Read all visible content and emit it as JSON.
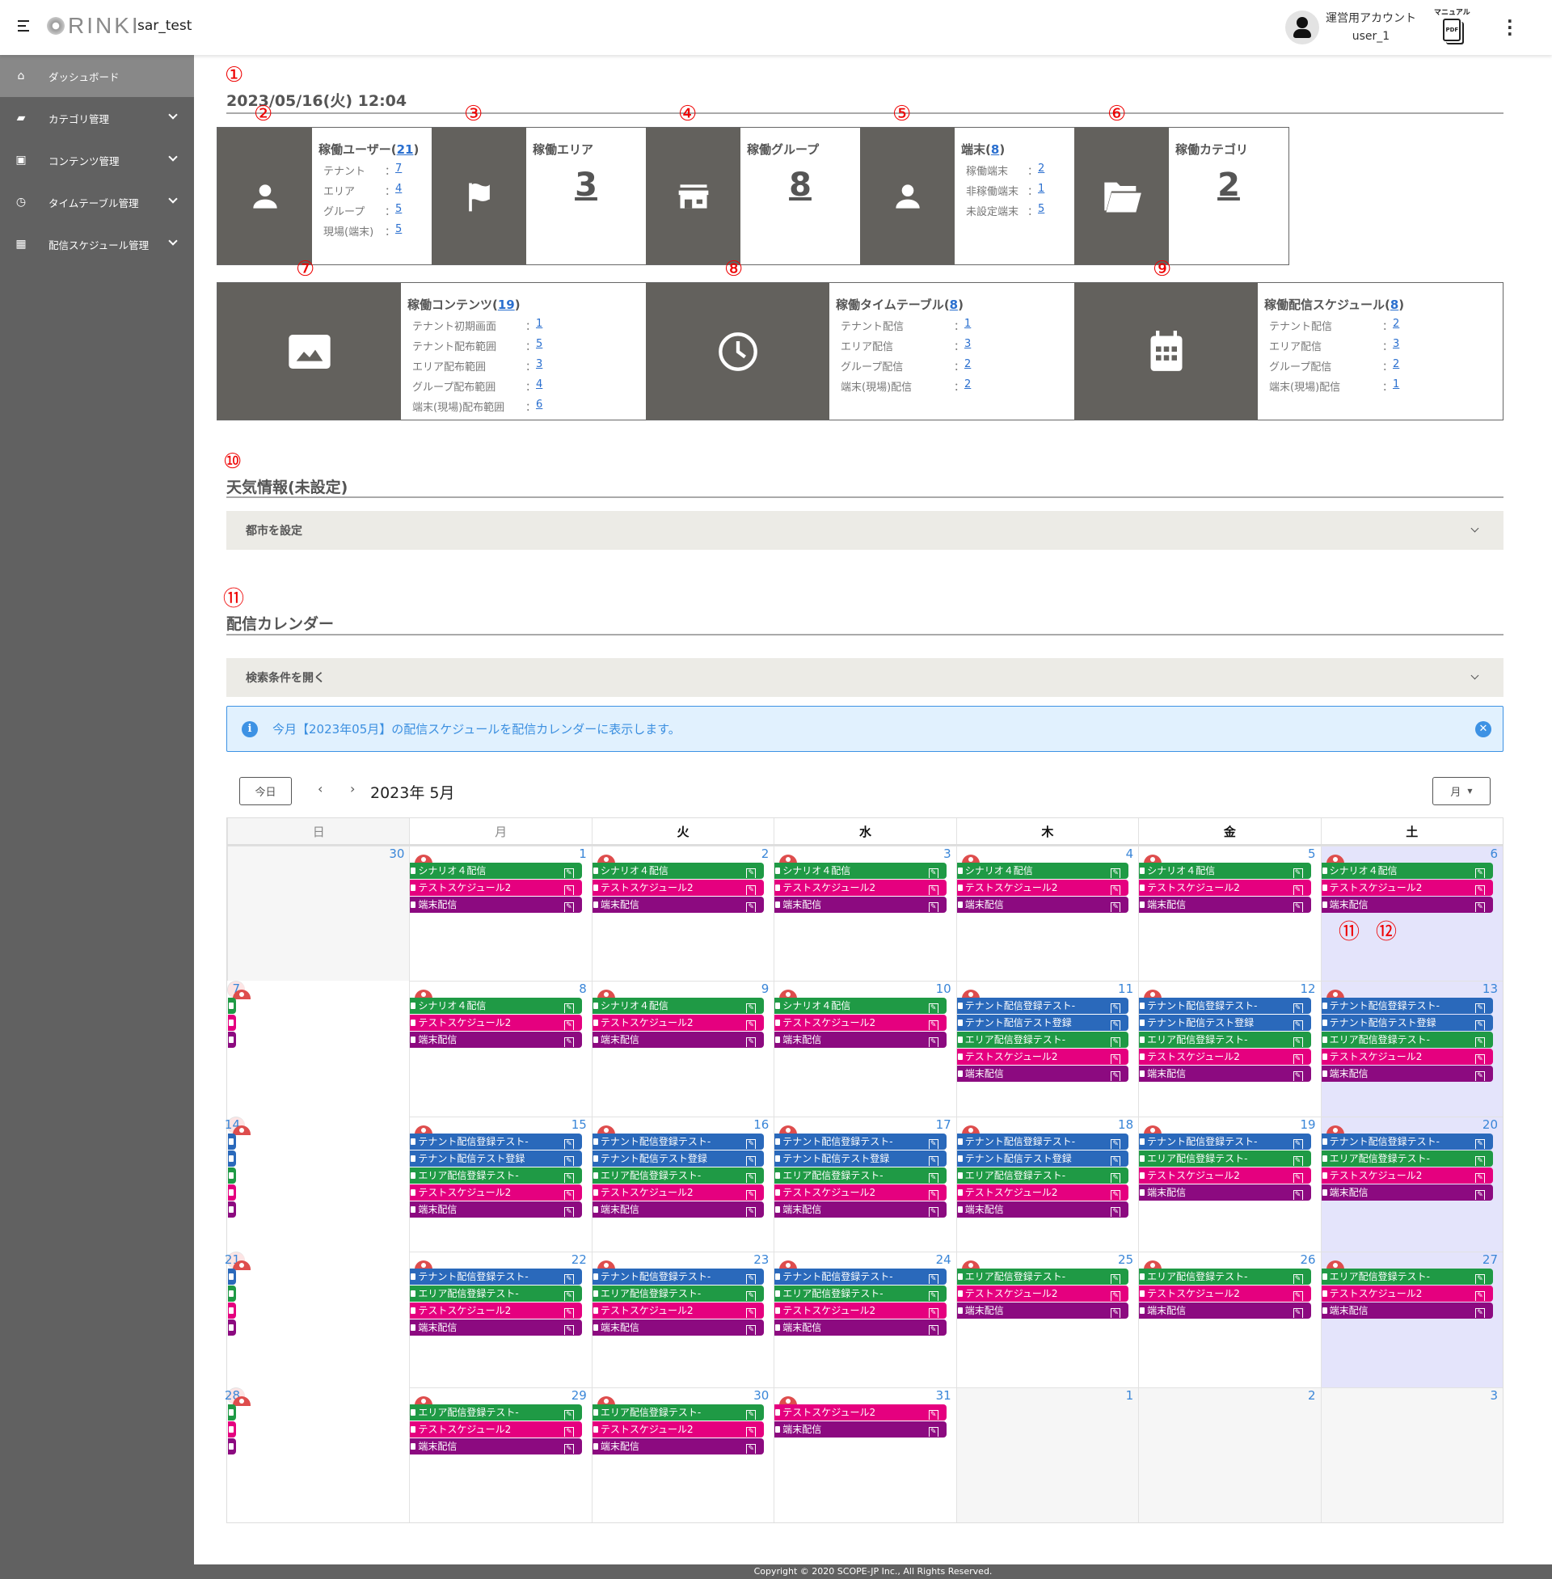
{
  "header": {
    "app_logo": "RINKI",
    "tenant": "sar_test",
    "account_role": "運営用アカウント",
    "account_user": "user_1",
    "manual_label": "マニュアル",
    "pdf_label": "PDF"
  },
  "sidebar": {
    "items": [
      {
        "label": "ダッシュボード",
        "icon": "home-icon",
        "active": true
      },
      {
        "label": "カテゴリ管理",
        "icon": "folder-icon"
      },
      {
        "label": "コンテンツ管理",
        "icon": "image-icon"
      },
      {
        "label": "タイムテーブル管理",
        "icon": "clock-icon"
      },
      {
        "label": "配信スケジュール管理",
        "icon": "calendar-icon"
      }
    ]
  },
  "annotations": [
    "①",
    "②",
    "③",
    "④",
    "⑤",
    "⑥",
    "⑦",
    "⑧",
    "⑨",
    "⑩",
    "⑪",
    "⑪",
    "⑫"
  ],
  "datetime": "2023/05/16(火) 12:04",
  "cards_row1": [
    {
      "icon": "person-icon",
      "title": "稼働ユーザー",
      "count": "21",
      "rows": [
        {
          "label": "テナント",
          "value": "7"
        },
        {
          "label": "エリア",
          "value": "4"
        },
        {
          "label": "グループ",
          "value": "5"
        },
        {
          "label": "現場(端末)",
          "value": "5"
        }
      ]
    },
    {
      "icon": "flag-icon",
      "title": "稼働エリア",
      "big": "3"
    },
    {
      "icon": "store-icon",
      "title": "稼働グループ",
      "big": "8"
    },
    {
      "icon": "person-icon",
      "title": "端末",
      "count": "8",
      "rows": [
        {
          "label": "稼働端末",
          "value": "2"
        },
        {
          "label": "非稼働端末",
          "value": "1"
        },
        {
          "label": "未設定端末",
          "value": "5"
        }
      ]
    },
    {
      "icon": "folder-open-icon",
      "title": "稼働カテゴリ",
      "big": "2"
    }
  ],
  "cards_row2": [
    {
      "icon": "image-icon",
      "title": "稼働コンテンツ",
      "count": "19",
      "rows": [
        {
          "label": "テナント初期画面",
          "value": "1"
        },
        {
          "label": "テナント配布範囲",
          "value": "5"
        },
        {
          "label": "エリア配布範囲",
          "value": "3"
        },
        {
          "label": "グループ配布範囲",
          "value": "4"
        },
        {
          "label": "端末(現場)配布範囲",
          "value": "6"
        }
      ]
    },
    {
      "icon": "clock-icon",
      "title": "稼働タイムテーブル",
      "count": "8",
      "rows": [
        {
          "label": "テナント配信",
          "value": "1"
        },
        {
          "label": "エリア配信",
          "value": "3"
        },
        {
          "label": "グループ配信",
          "value": "2"
        },
        {
          "label": "端末(現場)配信",
          "value": "2"
        }
      ]
    },
    {
      "icon": "calendar-icon",
      "title": "稼働配信スケジュール",
      "count": "8",
      "rows": [
        {
          "label": "テナント配信",
          "value": "2"
        },
        {
          "label": "エリア配信",
          "value": "3"
        },
        {
          "label": "グループ配信",
          "value": "2"
        },
        {
          "label": "端末(現場)配信",
          "value": "1"
        }
      ]
    }
  ],
  "weather": {
    "title": "天気情報(未設定)",
    "accordion": "都市を設定"
  },
  "calendar": {
    "title": "配信カレンダー",
    "search_accordion": "検索条件を開く",
    "info": "今月【2023年05月】の配信スケジュールを配信カレンダーに表示します。",
    "today_button": "今日",
    "prev": "‹",
    "next": "›",
    "month_title": "2023年 5月",
    "view_select": "月",
    "weekdays": [
      "日",
      "月",
      "火",
      "水",
      "木",
      "金",
      "土"
    ],
    "colors": {
      "G": "#1f9a45",
      "M": "#e5007f",
      "P": "#8c0a80",
      "B": "#2a69bb"
    },
    "event_names": {
      "S4": "シナリオ４配信",
      "TS2": "テストスケジュール2",
      "TM": "端末配信",
      "TN1": "テナント配信登録テスト-",
      "TN2": "テナント配信テスト登録",
      "AR": "エリア配信登録テスト-"
    },
    "days": [
      {
        "d": "30",
        "other": true,
        "ev": []
      },
      {
        "d": "1",
        "ev": [
          "S4",
          "TS2",
          "TM"
        ]
      },
      {
        "d": "2",
        "ev": [
          "S4",
          "TS2",
          "TM"
        ]
      },
      {
        "d": "3",
        "ev": [
          "S4",
          "TS2",
          "TM"
        ]
      },
      {
        "d": "4",
        "ev": [
          "S4",
          "TS2",
          "TM"
        ]
      },
      {
        "d": "5",
        "ev": [
          "S4",
          "TS2",
          "TM"
        ]
      },
      {
        "d": "6",
        "ev": [
          "S4",
          "TS2",
          "TM"
        ]
      },
      {
        "d": "7",
        "ev": [
          "S4",
          "TS2",
          "TM"
        ]
      },
      {
        "d": "8",
        "ev": [
          "S4",
          "TS2",
          "TM"
        ]
      },
      {
        "d": "9",
        "ev": [
          "S4",
          "TS2",
          "TM"
        ]
      },
      {
        "d": "10",
        "ev": [
          "S4",
          "TS2",
          "TM"
        ]
      },
      {
        "d": "11",
        "ev": [
          "TN1",
          "TN2",
          "AR",
          "TS2",
          "TM"
        ]
      },
      {
        "d": "12",
        "ev": [
          "TN1",
          "TN2",
          "AR",
          "TS2",
          "TM"
        ]
      },
      {
        "d": "13",
        "ev": [
          "TN1",
          "TN2",
          "AR",
          "TS2",
          "TM"
        ]
      },
      {
        "d": "14",
        "ev": [
          "TN1",
          "TN2",
          "AR",
          "TS2",
          "TM"
        ]
      },
      {
        "d": "15",
        "ev": [
          "TN1",
          "TN2",
          "AR",
          "TS2",
          "TM"
        ]
      },
      {
        "d": "16",
        "ev": [
          "TN1",
          "TN2",
          "AR",
          "TS2",
          "TM"
        ]
      },
      {
        "d": "17",
        "ev": [
          "TN1",
          "TN2",
          "AR",
          "TS2",
          "TM"
        ]
      },
      {
        "d": "18",
        "ev": [
          "TN1",
          "TN2",
          "AR",
          "TS2",
          "TM"
        ]
      },
      {
        "d": "19",
        "ev": [
          "TN1",
          "AR",
          "TS2",
          "TM"
        ]
      },
      {
        "d": "20",
        "ev": [
          "TN1",
          "AR",
          "TS2",
          "TM"
        ]
      },
      {
        "d": "21",
        "ev": [
          "TN1",
          "AR",
          "TS2",
          "TM"
        ]
      },
      {
        "d": "22",
        "ev": [
          "TN1",
          "AR",
          "TS2",
          "TM"
        ]
      },
      {
        "d": "23",
        "ev": [
          "TN1",
          "AR",
          "TS2",
          "TM"
        ]
      },
      {
        "d": "24",
        "ev": [
          "TN1",
          "AR",
          "TS2",
          "TM"
        ]
      },
      {
        "d": "25",
        "ev": [
          "AR",
          "TS2",
          "TM"
        ]
      },
      {
        "d": "26",
        "ev": [
          "AR",
          "TS2",
          "TM"
        ]
      },
      {
        "d": "27",
        "ev": [
          "AR",
          "TS2",
          "TM"
        ]
      },
      {
        "d": "28",
        "ev": [
          "AR",
          "TS2",
          "TM"
        ]
      },
      {
        "d": "29",
        "ev": [
          "AR",
          "TS2",
          "TM"
        ]
      },
      {
        "d": "30",
        "ev": [
          "AR",
          "TS2",
          "TM"
        ]
      },
      {
        "d": "31",
        "ev": [
          "TS2",
          "TM"
        ]
      },
      {
        "d": "1",
        "other": true,
        "ev": []
      },
      {
        "d": "2",
        "other": true,
        "ev": []
      },
      {
        "d": "3",
        "other": true,
        "ev": []
      }
    ]
  },
  "footer": "Copyright © 2020 SCOPE-JP Inc., All Rights Reserved."
}
